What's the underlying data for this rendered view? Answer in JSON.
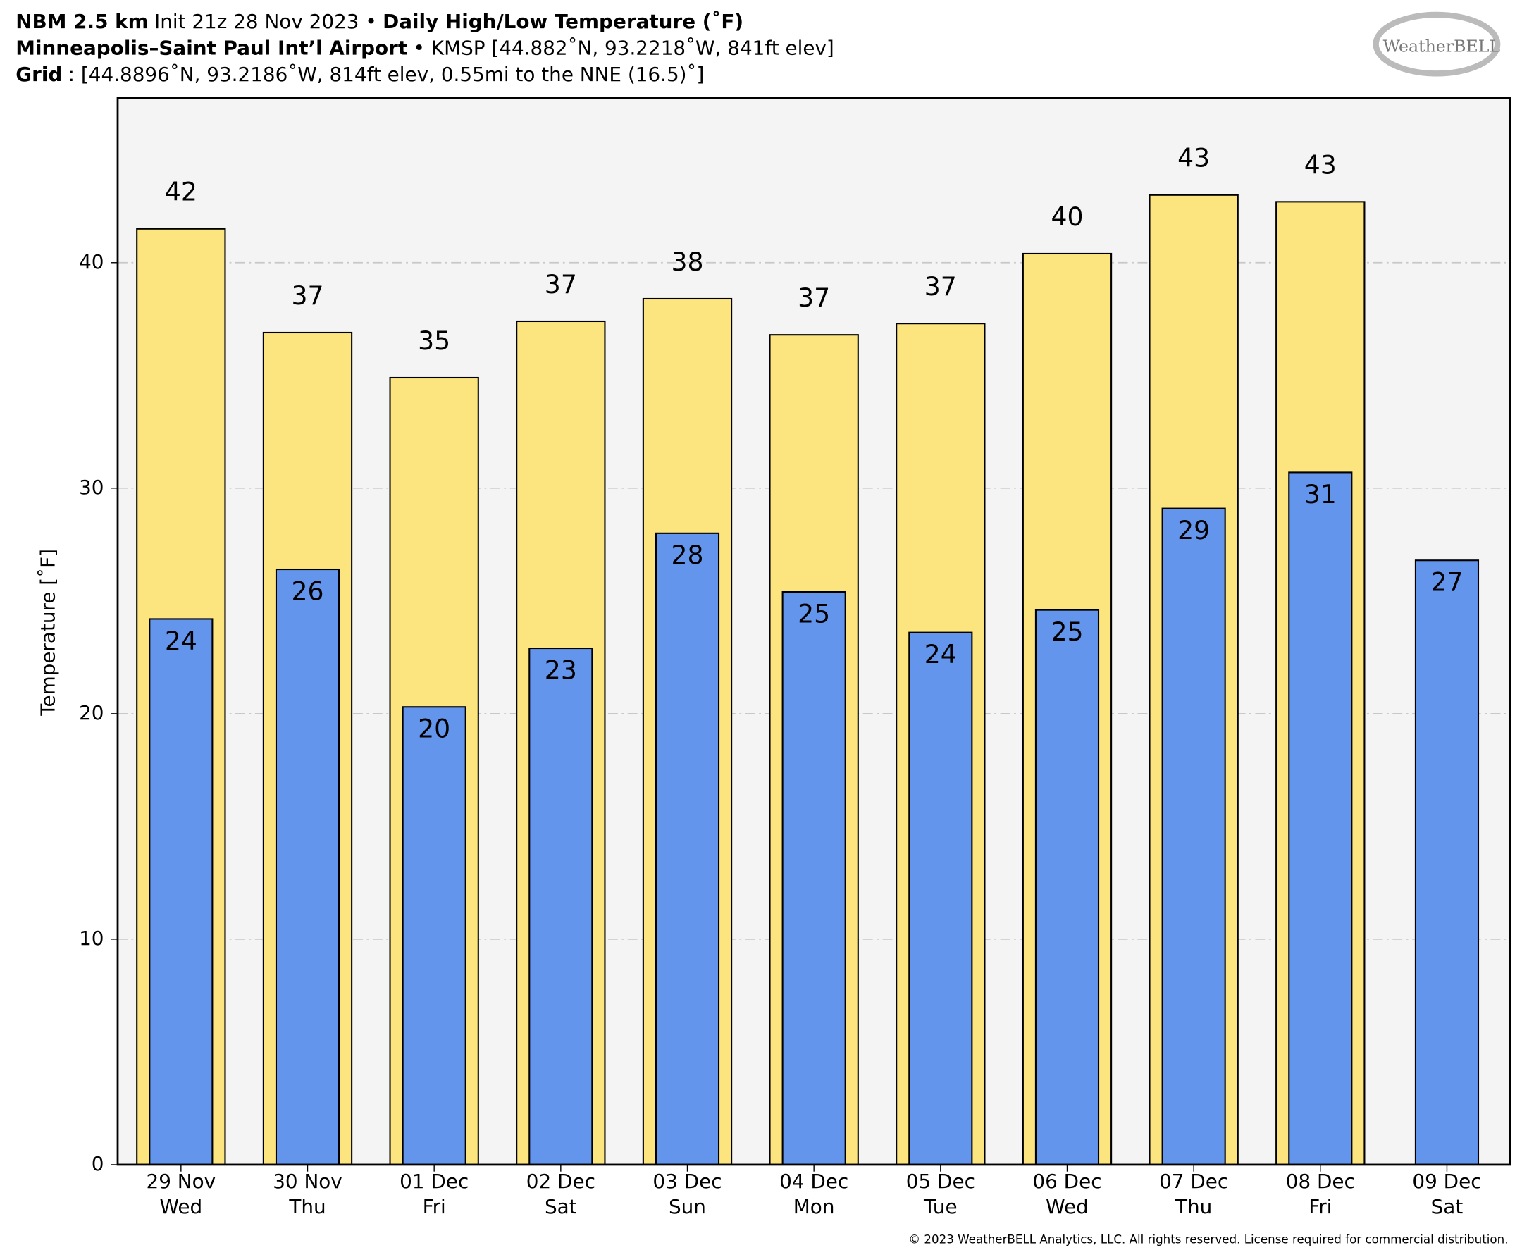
{
  "chart_data": {
    "type": "bar",
    "title_lines": [
      [
        {
          "text": "NBM 2.5 km",
          "bold": true
        },
        {
          "text": "Init 21z 28 Nov 2023 •",
          "bold": false
        },
        {
          "text": "Daily High/Low Temperature (˚F)",
          "bold": true
        }
      ],
      [
        {
          "text": "Minneapolis–Saint Paul Int’l Airport",
          "bold": true
        },
        {
          "text": "• KMSP [44.882˚N, 93.2218˚W, 841ft elev]",
          "bold": false
        }
      ],
      [
        {
          "text": "Grid",
          "bold": true
        },
        {
          "text": ": [44.8896˚N, 93.2186˚W, 814ft elev, 0.55mi to the NNE (16.5)˚]",
          "bold": false
        }
      ]
    ],
    "logo": "WeatherBELL",
    "copyright": "© 2023 WeatherBELL Analytics, LLC. All rights reserved. License required for commercial distribution.",
    "y_label": "Temperature [˚F]",
    "categories": [
      "29 Nov",
      "30 Nov",
      "01 Dec",
      "02 Dec",
      "03 Dec",
      "04 Dec",
      "05 Dec",
      "06 Dec",
      "07 Dec",
      "08 Dec",
      "09 Dec"
    ],
    "category_days": [
      "Wed",
      "Thu",
      "Fri",
      "Sat",
      "Sun",
      "Mon",
      "Tue",
      "Wed",
      "Thu",
      "Fri",
      "Sat"
    ],
    "series": [
      {
        "color": "#fce47e",
        "values": [
          41.5,
          36.9,
          34.9,
          37.4,
          38.4,
          36.8,
          37.3,
          40.4,
          43.0,
          42.7,
          null
        ],
        "value_labels": [
          "42",
          "37",
          "35",
          "37",
          "38",
          "37",
          "37",
          "40",
          "43",
          "43",
          null
        ]
      },
      {
        "color": "#6495ed",
        "values": [
          24.2,
          26.4,
          20.3,
          22.9,
          28.0,
          25.4,
          23.6,
          24.6,
          29.1,
          30.7,
          26.8
        ],
        "value_labels": [
          "24",
          "26",
          "20",
          "23",
          "28",
          "25",
          "24",
          "25",
          "29",
          "31",
          "27"
        ]
      }
    ],
    "ylim": [
      0,
      47.3
    ],
    "yticks": [
      0,
      10,
      20,
      30,
      40
    ],
    "grid": true
  }
}
